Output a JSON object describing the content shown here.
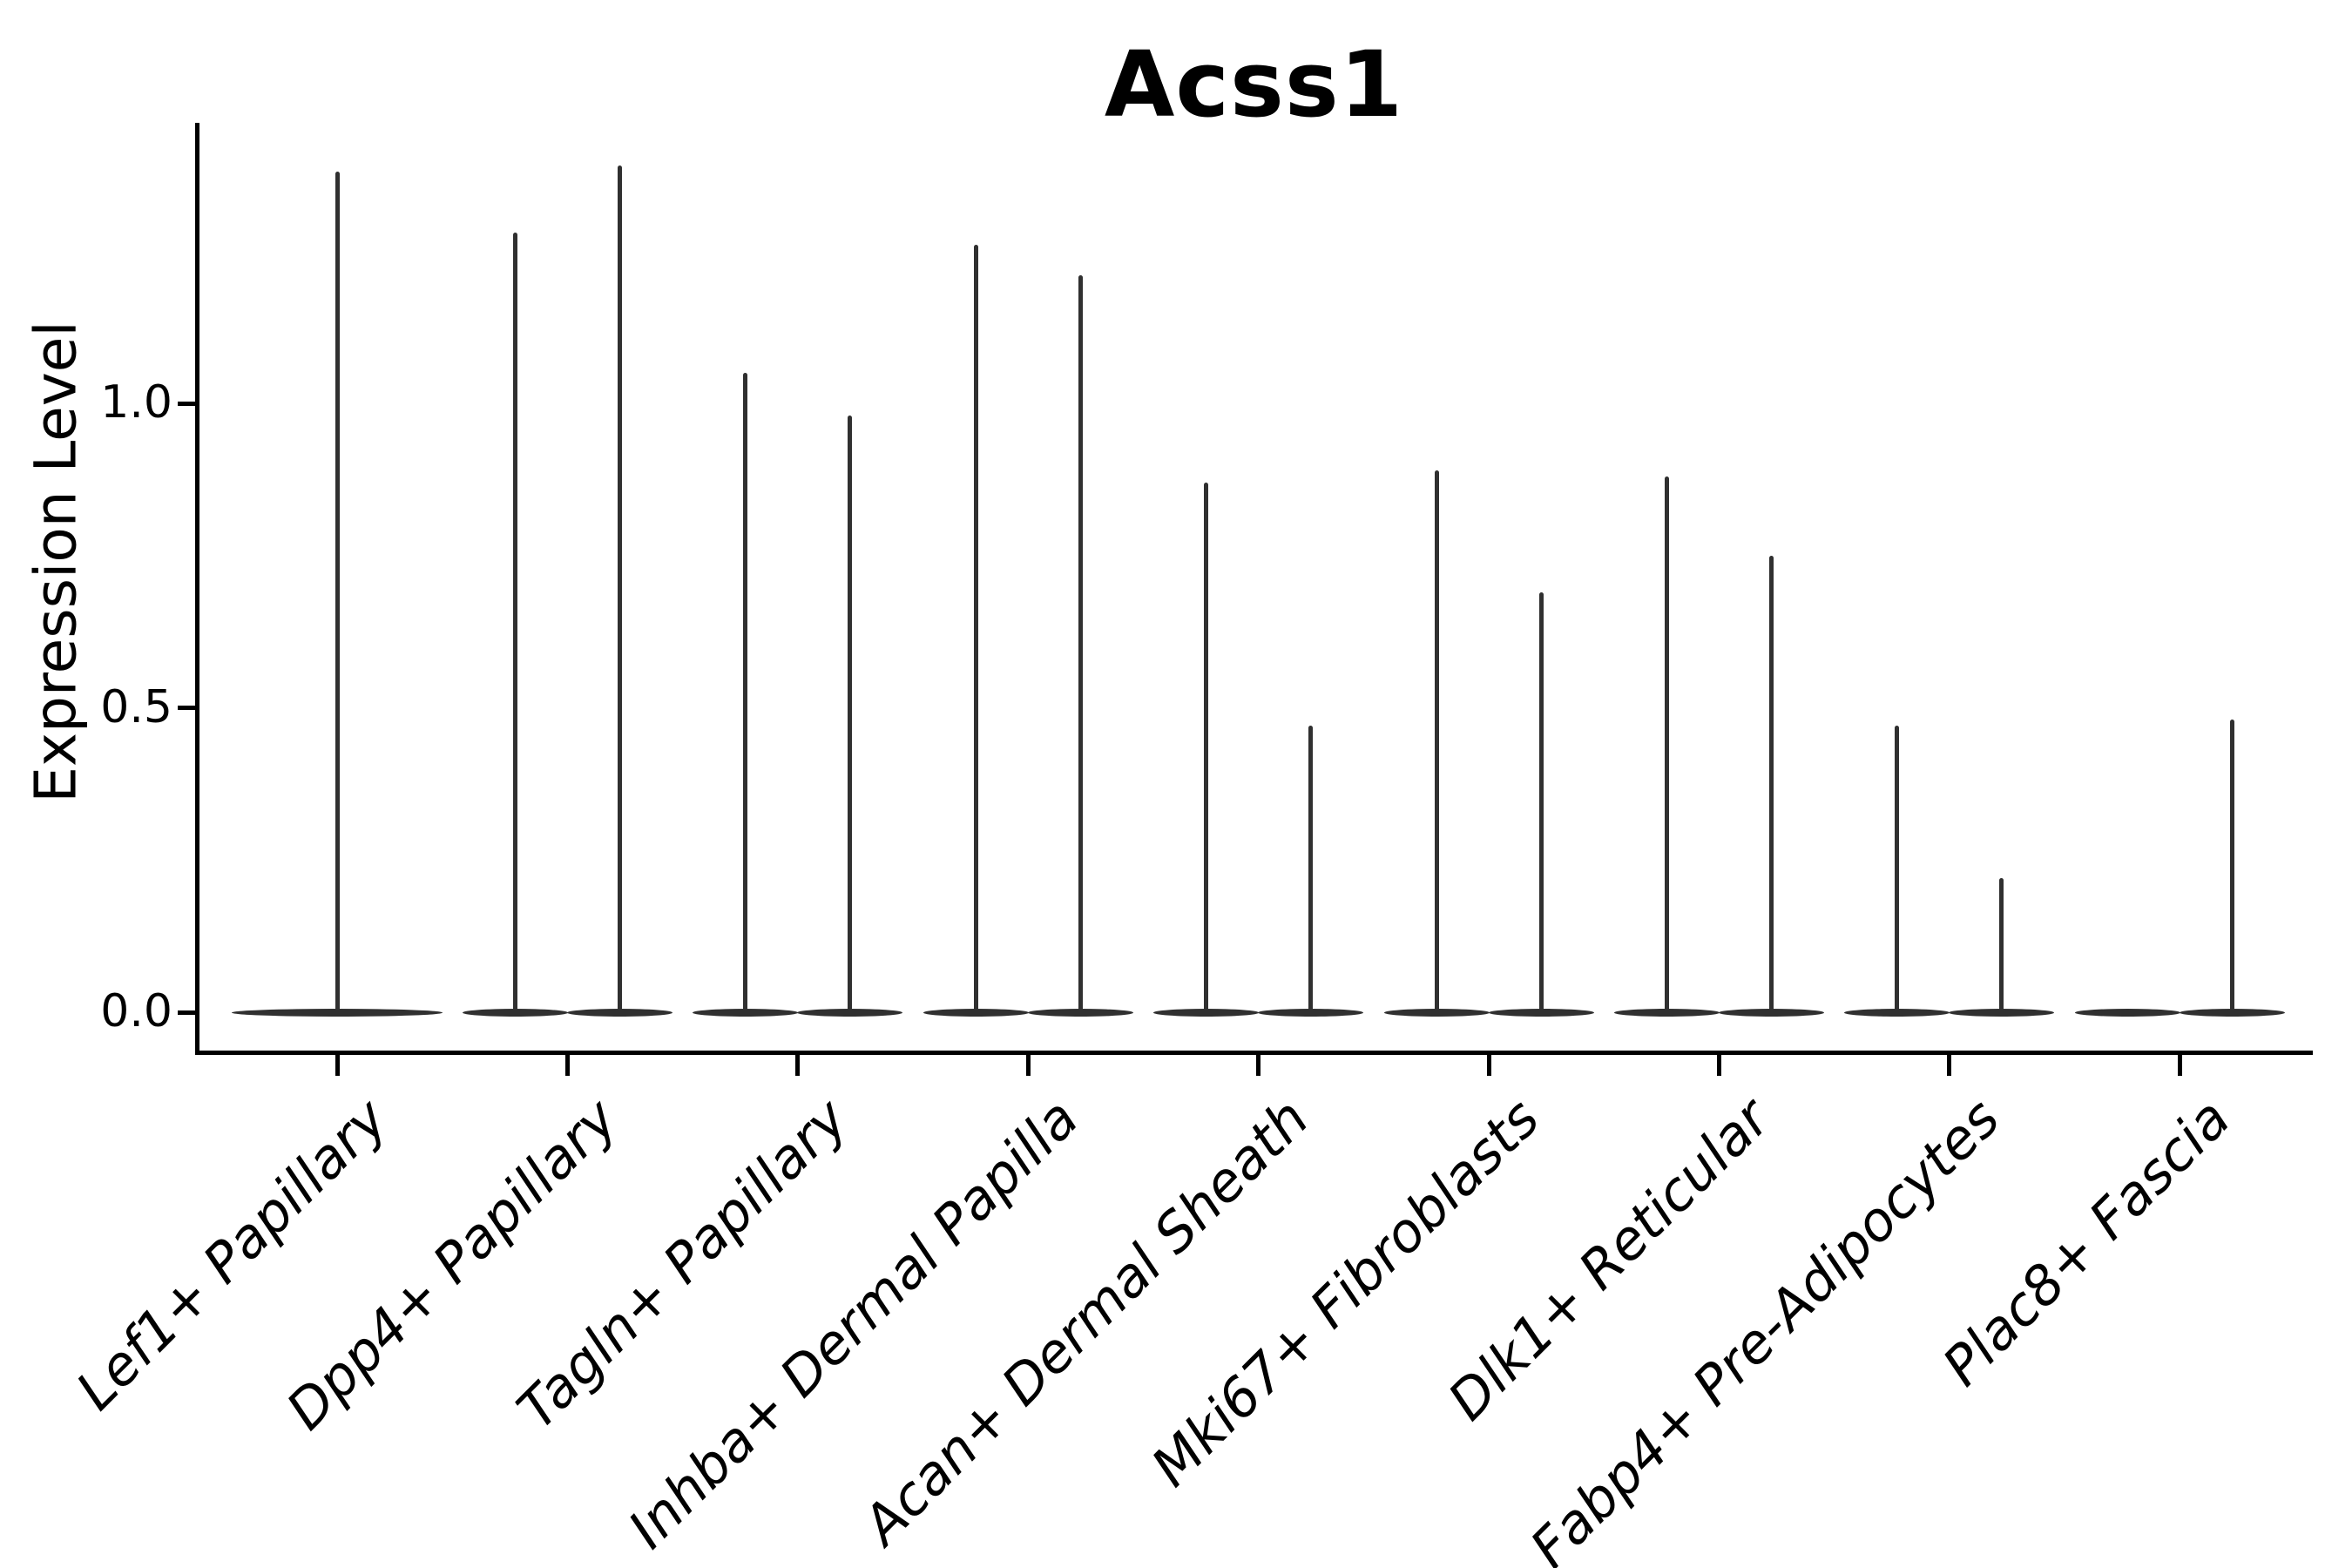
{
  "title": "Acss1",
  "y_axis": {
    "label": "Expression Level",
    "ticks": [
      {
        "label": "0.0",
        "value": 0.0
      },
      {
        "label": "0.5",
        "value": 0.5
      },
      {
        "label": "1.0",
        "value": 1.0
      }
    ]
  },
  "colors": {
    "violin": "#303030",
    "axis": "#000000",
    "text": "#000000",
    "background": "#ffffff"
  },
  "chart_data": {
    "type": "violin",
    "title": "Acss1",
    "xlabel": "",
    "ylabel": "Expression Level",
    "ylim": [
      -0.07,
      1.46
    ],
    "yticks": [
      0.0,
      0.5,
      1.0
    ],
    "grid": false,
    "legend": "none",
    "orientation": "vertical",
    "description": "Split violin plot of Acss1 expression; each violin collapses to a flat base at 0 with a thin spike up to the maximum expression value",
    "categories": [
      "Lef1+ Papillary",
      "Dpp4+ Papillary",
      "Tagln+ Papillary",
      "Inhba+ Dermal Papilla",
      "Acan+ Dermal Sheath",
      "Mki67+ Fibroblasts",
      "Dlk1+ Reticular",
      "Fabp4+ Pre-Adipocytes",
      "Plac8+ Fascia"
    ],
    "violins": [
      {
        "category": "Lef1+ Papillary",
        "parts": [
          {
            "position": "center",
            "max": 1.38
          }
        ]
      },
      {
        "category": "Dpp4+ Papillary",
        "parts": [
          {
            "position": "left",
            "max": 1.28
          },
          {
            "position": "right",
            "max": 1.39
          }
        ]
      },
      {
        "category": "Tagln+ Papillary",
        "parts": [
          {
            "position": "left",
            "max": 1.05
          },
          {
            "position": "right",
            "max": 0.98
          }
        ]
      },
      {
        "category": "Inhba+ Dermal Papilla",
        "parts": [
          {
            "position": "left",
            "max": 1.26
          },
          {
            "position": "right",
            "max": 1.21
          }
        ]
      },
      {
        "category": "Acan+ Dermal Sheath",
        "parts": [
          {
            "position": "left",
            "max": 0.87
          },
          {
            "position": "right",
            "max": 0.47
          }
        ]
      },
      {
        "category": "Mki67+ Fibroblasts",
        "parts": [
          {
            "position": "left",
            "max": 0.89
          },
          {
            "position": "right",
            "max": 0.69
          }
        ]
      },
      {
        "category": "Dlk1+ Reticular",
        "parts": [
          {
            "position": "left",
            "max": 0.88
          },
          {
            "position": "right",
            "max": 0.75
          }
        ]
      },
      {
        "category": "Fabp4+ Pre-Adipocytes",
        "parts": [
          {
            "position": "left",
            "max": 0.47
          },
          {
            "position": "right",
            "max": 0.22
          }
        ]
      },
      {
        "category": "Plac8+ Fascia",
        "parts": [
          {
            "position": "left",
            "max": 0.0
          },
          {
            "position": "right",
            "max": 0.48
          }
        ]
      }
    ]
  }
}
